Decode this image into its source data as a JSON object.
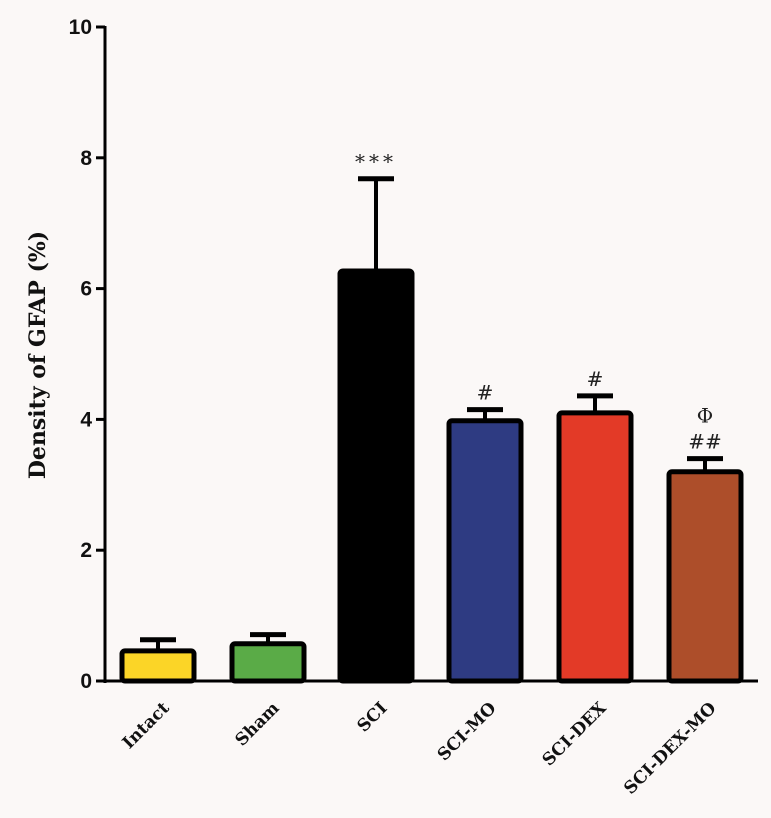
{
  "chart_data": {
    "type": "bar",
    "title": "",
    "xlabel": "",
    "ylabel": "Density of GFAP (%)",
    "ylim": [
      0,
      10
    ],
    "yticks": [
      0,
      2,
      4,
      6,
      8,
      10
    ],
    "grid": false,
    "legend": null,
    "categories": [
      "Intact",
      "Sham",
      "SCI",
      "SCI-MO",
      "SCI-DEX",
      "SCI-DEX-MO"
    ],
    "values": [
      0.46,
      0.57,
      6.27,
      3.98,
      4.1,
      3.2
    ],
    "error_upper": [
      0.17,
      0.14,
      1.41,
      0.17,
      0.26,
      0.2
    ],
    "colors": [
      "#fbd527",
      "#5aab47",
      "#000000",
      "#2e3b82",
      "#e33a27",
      "#ad4e2a"
    ],
    "annotations": [
      "",
      "",
      "***",
      "#",
      "#",
      "Φ\n##"
    ]
  },
  "annotations_lines": [
    [],
    [],
    [
      "***"
    ],
    [
      "#"
    ],
    [
      "#"
    ],
    [
      "Φ",
      "##"
    ]
  ]
}
